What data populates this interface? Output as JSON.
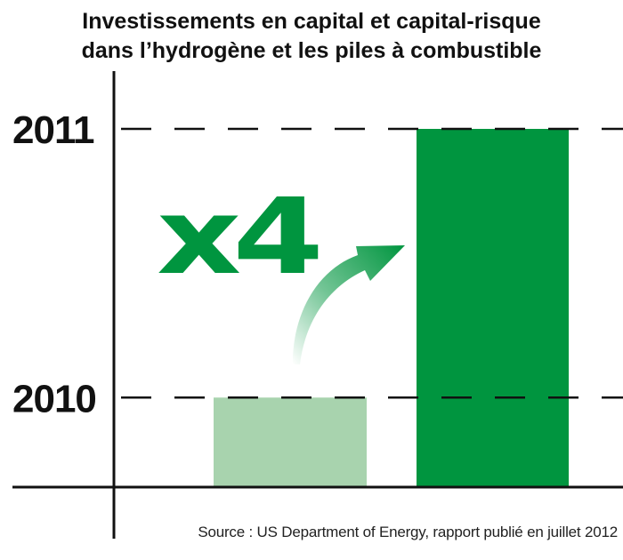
{
  "title": {
    "line1": "Investissements en capital et capital-risque",
    "line2": "dans l’hydrogène et les piles à combustible"
  },
  "annotation": {
    "multiplier": "x4"
  },
  "source": "Source : US Department of Energy, rapport publié en juillet 2012",
  "colors": {
    "bar_2010": "#a8d3ae",
    "bar_2011": "#00953f",
    "multiplier": "#00953f"
  },
  "chart_data": {
    "type": "bar",
    "categories": [
      "2010",
      "2011"
    ],
    "values": [
      1,
      4
    ],
    "y_tick_labels": [
      "2010",
      "2011"
    ],
    "ylim": [
      0,
      4
    ],
    "grid": "dashed lines at the 2010 and 2011 levels",
    "annotation": "x4"
  }
}
